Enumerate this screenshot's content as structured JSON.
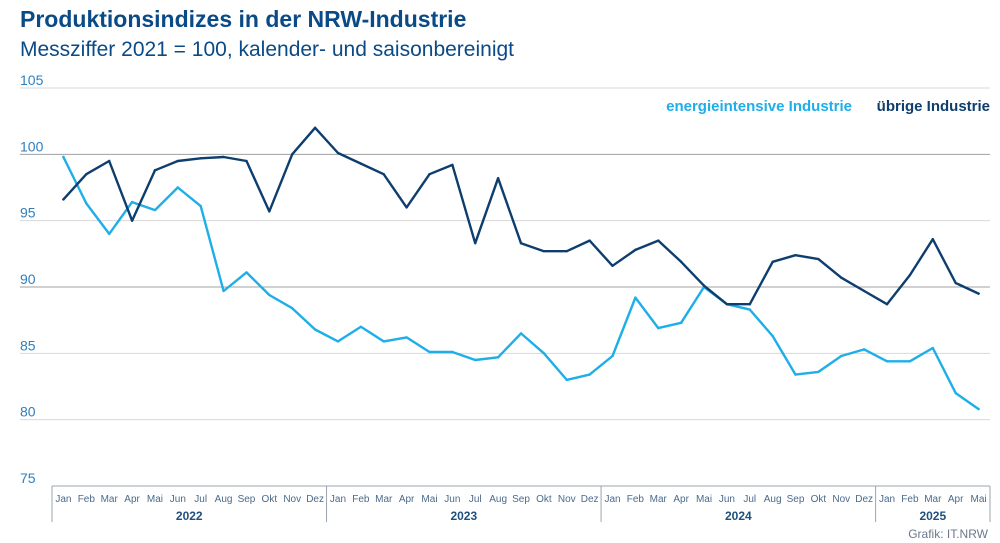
{
  "title": "Produktionsindizes in der NRW-Industrie",
  "subtitle": "Messziffer 2021 = 100, kalender- und saisonbereinigt",
  "source": "Grafik: IT.NRW",
  "colors": {
    "energieintensiv": "#1eaee8",
    "uebrige": "#0e3e6e",
    "grid": "#d8d8d8",
    "grid90": "#a0a0a0"
  },
  "chart_data": {
    "type": "line",
    "ylim": [
      75,
      105
    ],
    "yticks": [
      75,
      80,
      85,
      90,
      95,
      100,
      105
    ],
    "grid": true,
    "legend_position": "top-right",
    "months": [
      "Jan",
      "Feb",
      "Mar",
      "Apr",
      "Mai",
      "Jun",
      "Jul",
      "Aug",
      "Sep",
      "Okt",
      "Nov",
      "Dez",
      "Jan",
      "Feb",
      "Mar",
      "Apr",
      "Mai",
      "Jun",
      "Jul",
      "Aug",
      "Sep",
      "Okt",
      "Nov",
      "Dez",
      "Jan",
      "Feb",
      "Mar",
      "Apr",
      "Mai",
      "Jun",
      "Jul",
      "Aug",
      "Sep",
      "Okt",
      "Nov",
      "Dez",
      "Jan",
      "Feb",
      "Mar",
      "Apr",
      "Mai"
    ],
    "years": [
      {
        "label": "2022",
        "start": 0,
        "count": 12
      },
      {
        "label": "2023",
        "start": 12,
        "count": 12
      },
      {
        "label": "2024",
        "start": 24,
        "count": 12
      },
      {
        "label": "2025",
        "start": 36,
        "count": 5
      }
    ],
    "series": [
      {
        "name": "energieintensive Industrie",
        "color": "#1eaee8",
        "values": [
          99.8,
          96.3,
          94.0,
          96.4,
          95.8,
          97.5,
          96.1,
          89.7,
          91.1,
          89.4,
          88.4,
          86.8,
          85.9,
          87.0,
          85.9,
          86.2,
          85.1,
          85.1,
          84.5,
          84.7,
          86.5,
          85.0,
          83.0,
          83.4,
          84.8,
          89.2,
          86.9,
          87.3,
          90.0,
          88.7,
          88.3,
          86.3,
          83.4,
          83.6,
          84.8,
          85.3,
          84.4,
          84.4,
          85.4,
          82.0,
          80.8
        ]
      },
      {
        "name": "übrige Industrie",
        "color": "#0e3e6e",
        "values": [
          96.6,
          98.5,
          99.5,
          95.0,
          98.8,
          99.5,
          99.7,
          99.8,
          99.5,
          95.7,
          100.0,
          102.0,
          100.1,
          99.3,
          98.5,
          96.0,
          98.5,
          99.2,
          93.3,
          98.2,
          93.3,
          92.7,
          92.7,
          93.5,
          91.6,
          92.8,
          93.5,
          91.9,
          90.1,
          88.7,
          88.7,
          91.9,
          92.4,
          92.1,
          90.7,
          89.7,
          88.7,
          90.9,
          93.6,
          90.3,
          89.5
        ]
      }
    ]
  }
}
